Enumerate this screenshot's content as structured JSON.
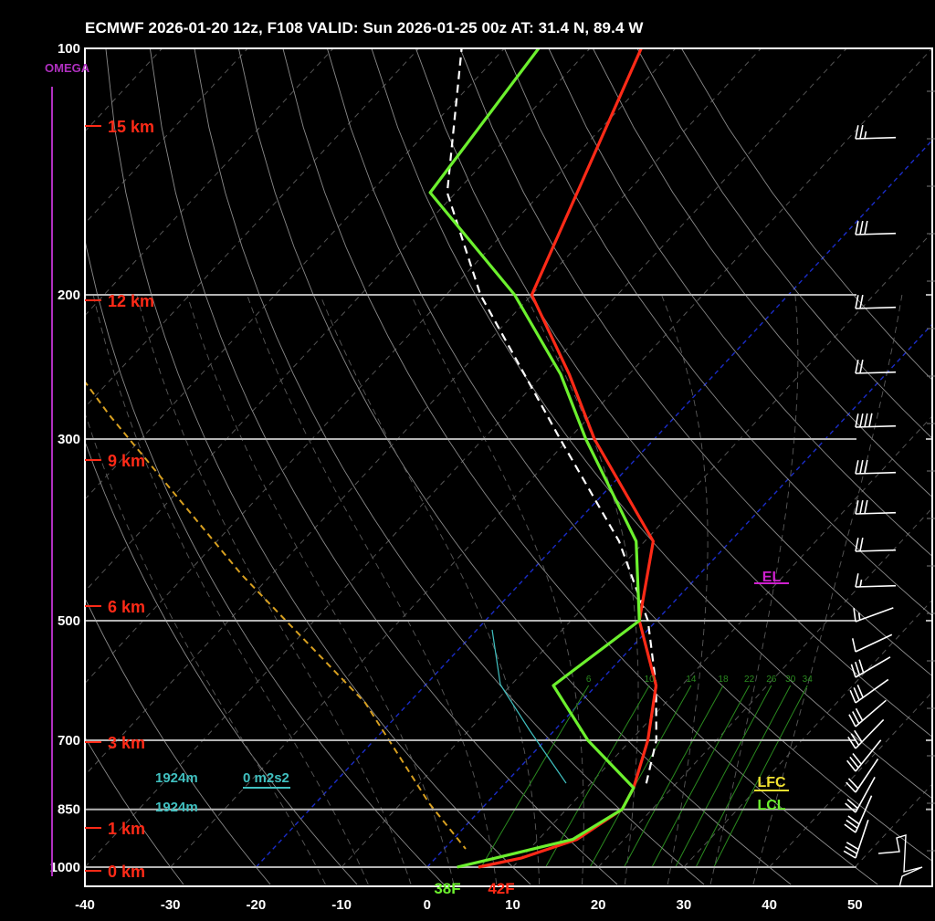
{
  "header": {
    "title": "ECMWF 2026-01-20 12z, F108  VALID: Sun 2026-01-25 00z  AT: 31.4 N, 89.4 W"
  },
  "colors": {
    "temperature": "#ff2a17",
    "dewpoint": "#6cf02e",
    "parcel": "#ffffff",
    "isobar": "#b4b4b4",
    "dry_adiabat": "#8a8a8a",
    "moist_adiabat": "#5a5a5a",
    "isotherm_highlight": "#1a2cc8",
    "mixing_ratio": "#2a8a1f",
    "omega": "#b030c0",
    "height_label": "#ff2a17",
    "helicity": "#40c0c0",
    "lfc": "#f0e030",
    "lcl": "#6cf02e",
    "el": "#d020d0",
    "dashed_orange": "#d8a020"
  },
  "labels": {
    "omega": "OMEGA",
    "surface_dewpoint": "38F",
    "surface_temp": "42F",
    "lfc": "LFC",
    "lcl": "LCL",
    "el": "EL",
    "cin_height": "1924m",
    "lcl_height": "1924m",
    "helicity": "0 m2s2"
  },
  "chart_data": {
    "type": "skew-t",
    "xlim": [
      -40,
      50
    ],
    "x_ticks": [
      "-40",
      "-30",
      "-20",
      "-10",
      "0",
      "10",
      "20",
      "30",
      "40",
      "50"
    ],
    "pressure_levels": [
      "100",
      "200",
      "300",
      "500",
      "700",
      "850",
      "1000"
    ],
    "height_labels": [
      "15 km",
      "12 km",
      "9 km",
      "6 km",
      "3 km",
      "1 km",
      "0 km"
    ],
    "mixing_ratio_labels": [
      "6",
      "10",
      "14",
      "18",
      "22",
      "26",
      "30",
      "34"
    ],
    "temperature_profile": [
      {
        "p": 1000,
        "t": 6
      },
      {
        "p": 975,
        "t": 10
      },
      {
        "p": 925,
        "t": 14.5
      },
      {
        "p": 850,
        "t": 16.5
      },
      {
        "p": 800,
        "t": 15.5
      },
      {
        "p": 700,
        "t": 12
      },
      {
        "p": 600,
        "t": 7
      },
      {
        "p": 500,
        "t": -2
      },
      {
        "p": 400,
        "t": -9
      },
      {
        "p": 300,
        "t": -27
      },
      {
        "p": 250,
        "t": -37
      },
      {
        "p": 200,
        "t": -50
      },
      {
        "p": 100,
        "t": -64
      }
    ],
    "dewpoint_profile": [
      {
        "p": 1000,
        "t": 3.5
      },
      {
        "p": 975,
        "t": 7
      },
      {
        "p": 925,
        "t": 14
      },
      {
        "p": 850,
        "t": 16.5
      },
      {
        "p": 800,
        "t": 15.5
      },
      {
        "p": 700,
        "t": 5
      },
      {
        "p": 600,
        "t": -5
      },
      {
        "p": 500,
        "t": -2
      },
      {
        "p": 400,
        "t": -11
      },
      {
        "p": 300,
        "t": -28
      },
      {
        "p": 250,
        "t": -38
      },
      {
        "p": 200,
        "t": -52
      },
      {
        "p": 150,
        "t": -73
      },
      {
        "p": 100,
        "t": -76
      }
    ],
    "parcel_profile": [
      {
        "p": 790,
        "t": 16.5
      },
      {
        "p": 700,
        "t": 13
      },
      {
        "p": 600,
        "t": 7
      },
      {
        "p": 500,
        "t": -1
      },
      {
        "p": 400,
        "t": -13
      },
      {
        "p": 300,
        "t": -31
      },
      {
        "p": 200,
        "t": -56
      },
      {
        "p": 150,
        "t": -71
      },
      {
        "p": 100,
        "t": -85
      }
    ]
  }
}
